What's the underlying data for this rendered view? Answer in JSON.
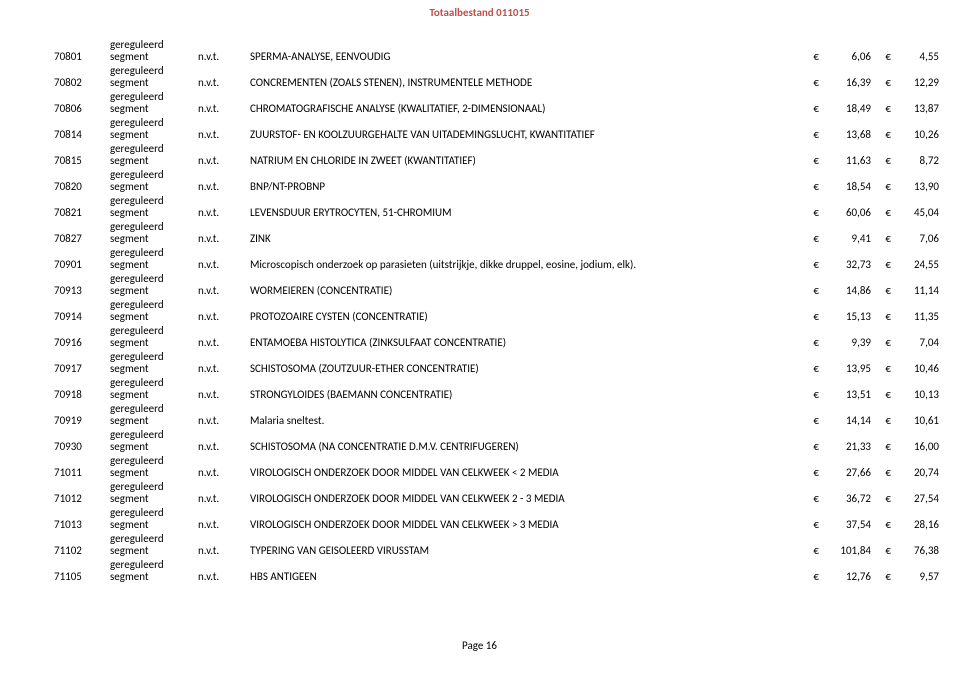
{
  "title_color": "#c0504d",
  "title": "Totaalbestand 011015",
  "seg_prefix": "gereguleerd",
  "seg_text": "segment",
  "nvt": "n.v.t.",
  "euro": "€",
  "footer": "Page 16",
  "rows": [
    {
      "code": "70801",
      "desc": "SPERMA-ANALYSE, EENVOUDIG",
      "v1": "6,06",
      "v2": "4,55"
    },
    {
      "code": "70802",
      "desc": "CONCREMENTEN (ZOALS STENEN), INSTRUMENTELE METHODE",
      "v1": "16,39",
      "v2": "12,29"
    },
    {
      "code": "70806",
      "desc": "CHROMATOGRAFISCHE ANALYSE (KWALITATIEF, 2-DIMENSIONAAL)",
      "v1": "18,49",
      "v2": "13,87"
    },
    {
      "code": "70814",
      "desc": "ZUURSTOF- EN KOOLZUURGEHALTE VAN UITADEMINGSLUCHT, KWANTITATIEF",
      "v1": "13,68",
      "v2": "10,26"
    },
    {
      "code": "70815",
      "desc": "NATRIUM EN CHLORIDE IN ZWEET (KWANTITATIEF)",
      "v1": "11,63",
      "v2": "8,72"
    },
    {
      "code": "70820",
      "desc": "BNP/NT-PROBNP",
      "v1": "18,54",
      "v2": "13,90"
    },
    {
      "code": "70821",
      "desc": "LEVENSDUUR ERYTROCYTEN, 51-CHROMIUM",
      "v1": "60,06",
      "v2": "45,04"
    },
    {
      "code": "70827",
      "desc": "ZINK",
      "v1": "9,41",
      "v2": "7,06"
    },
    {
      "code": "70901",
      "desc": "Microscopisch onderzoek op parasieten (uitstrijkje, dikke druppel, eosine, jodium, elk).",
      "v1": "32,73",
      "v2": "24,55"
    },
    {
      "code": "70913",
      "desc": "WORMEIEREN (CONCENTRATIE)",
      "v1": "14,86",
      "v2": "11,14"
    },
    {
      "code": "70914",
      "desc": "PROTOZOAIRE CYSTEN (CONCENTRATIE)",
      "v1": "15,13",
      "v2": "11,35"
    },
    {
      "code": "70916",
      "desc": "ENTAMOEBA HISTOLYTICA (ZINKSULFAAT CONCENTRATIE)",
      "v1": "9,39",
      "v2": "7,04"
    },
    {
      "code": "70917",
      "desc": "SCHISTOSOMA (ZOUTZUUR-ETHER CONCENTRATIE)",
      "v1": "13,95",
      "v2": "10,46"
    },
    {
      "code": "70918",
      "desc": "STRONGYLOIDES (BAEMANN CONCENTRATIE)",
      "v1": "13,51",
      "v2": "10,13"
    },
    {
      "code": "70919",
      "desc": "Malaria sneltest.",
      "v1": "14,14",
      "v2": "10,61"
    },
    {
      "code": "70930",
      "desc": "SCHISTOSOMA (NA CONCENTRATIE D.M.V. CENTRIFUGEREN)",
      "v1": "21,33",
      "v2": "16,00"
    },
    {
      "code": "71011",
      "desc": "VIROLOGISCH ONDERZOEK DOOR MIDDEL VAN CELKWEEK < 2 MEDIA",
      "v1": "27,66",
      "v2": "20,74"
    },
    {
      "code": "71012",
      "desc": "VIROLOGISCH ONDERZOEK DOOR MIDDEL VAN CELKWEEK 2 - 3 MEDIA",
      "v1": "36,72",
      "v2": "27,54"
    },
    {
      "code": "71013",
      "desc": "VIROLOGISCH ONDERZOEK DOOR MIDDEL VAN CELKWEEK > 3 MEDIA",
      "v1": "37,54",
      "v2": "28,16"
    },
    {
      "code": "71102",
      "desc": "TYPERING VAN GEISOLEERD VIRUSSTAM",
      "v1": "101,84",
      "v2": "76,38"
    },
    {
      "code": "71105",
      "desc": "HBS ANTIGEEN",
      "v1": "12,76",
      "v2": "9,57"
    }
  ]
}
